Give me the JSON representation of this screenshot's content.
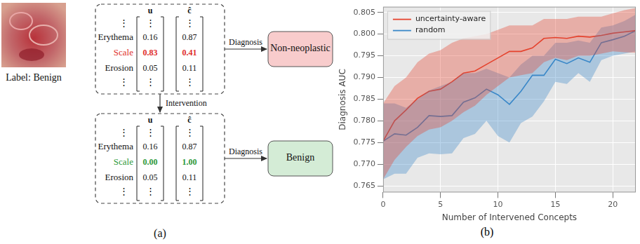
{
  "diagram": {
    "image_caption": "Label: Benign",
    "column_headers": [
      "u",
      "ĉ"
    ],
    "ellipsis": "⋮",
    "before": {
      "rows": [
        {
          "concept": "Erythema",
          "u": "0.16",
          "c": "0.87"
        },
        {
          "concept": "Scale",
          "u": "0.83",
          "c": "0.41",
          "color": "#e0302c"
        },
        {
          "concept": "Erosion",
          "u": "0.05",
          "c": "0.11"
        }
      ],
      "edge_label": "Diagnosis",
      "output": {
        "label": "Non-neoplastic",
        "color": "#f8cccc"
      }
    },
    "intervention_label": "Intervention",
    "after": {
      "rows": [
        {
          "concept": "Erythema",
          "u": "0.16",
          "c": "0.87"
        },
        {
          "concept": "Scale",
          "u": "0.00",
          "c": "1.00",
          "color": "#2e9a3a"
        },
        {
          "concept": "Erosion",
          "u": "0.05",
          "c": "0.11"
        }
      ],
      "edge_label": "Diagnosis",
      "output": {
        "label": "Benign",
        "color": "#d4ecd6"
      }
    },
    "caption": "(a)"
  },
  "chart_data": {
    "type": "line",
    "caption": "(b)",
    "x_label": "Number of Intervened Concepts",
    "y_label": "Diagnosis AUC",
    "x": [
      0,
      1,
      2,
      3,
      4,
      5,
      6,
      7,
      8,
      9,
      10,
      11,
      12,
      13,
      14,
      15,
      16,
      17,
      18,
      19,
      20,
      21,
      22
    ],
    "xlim": [
      0,
      22
    ],
    "xticks": [
      0,
      5,
      10,
      15,
      20
    ],
    "ylim": [
      0.7635,
      0.8063
    ],
    "yticks": [
      0.765,
      {
        "value": 0.77,
        "label": "0.770"
      },
      0.775,
      {
        "value": 0.78,
        "label": "0.780"
      },
      0.785,
      {
        "value": 0.79,
        "label": "0.790"
      },
      0.795,
      {
        "value": 0.8,
        "label": "0.800"
      },
      0.805
    ],
    "grid": true,
    "legend": "upper left",
    "series": [
      {
        "name": "uncertainty-aware",
        "color": "#e5432d",
        "values": [
          0.7753,
          0.78,
          0.7825,
          0.7852,
          0.7868,
          0.7873,
          0.789,
          0.791,
          0.7915,
          0.793,
          0.7945,
          0.796,
          0.796,
          0.7968,
          0.799,
          0.7992,
          0.799,
          0.7995,
          0.7993,
          0.7997,
          0.8002,
          0.8005,
          0.8008
        ],
        "lower": [
          0.7665,
          0.771,
          0.774,
          0.7765,
          0.778,
          0.7785,
          0.78,
          0.782,
          0.7835,
          0.786,
          0.788,
          0.79,
          0.7905,
          0.791,
          0.7935,
          0.7945,
          0.794,
          0.795,
          0.795,
          0.7955,
          0.796,
          0.7958,
          0.7957
        ],
        "upper": [
          0.784,
          0.788,
          0.79,
          0.7935,
          0.7955,
          0.7963,
          0.798,
          0.799,
          0.7995,
          0.8,
          0.801,
          0.802,
          0.802,
          0.802,
          0.8035,
          0.8035,
          0.8035,
          0.804,
          0.804,
          0.804,
          0.8048,
          0.8055,
          0.806
        ]
      },
      {
        "name": "random",
        "color": "#3a88c8",
        "values": [
          0.7753,
          0.777,
          0.7767,
          0.7785,
          0.7812,
          0.781,
          0.7812,
          0.7843,
          0.7853,
          0.7873,
          0.786,
          0.7838,
          0.7868,
          0.7905,
          0.7905,
          0.7942,
          0.7932,
          0.7945,
          0.7935,
          0.798,
          0.7987,
          0.7995,
          0.8008
        ],
        "lower": [
          0.7665,
          0.7678,
          0.7678,
          0.7715,
          0.7725,
          0.7723,
          0.7725,
          0.776,
          0.777,
          0.78,
          0.7765,
          0.775,
          0.7795,
          0.781,
          0.7845,
          0.789,
          0.7885,
          0.791,
          0.789,
          0.794,
          0.795,
          0.7955,
          0.796
        ],
        "upper": [
          0.784,
          0.784,
          0.783,
          0.785,
          0.787,
          0.788,
          0.789,
          0.791,
          0.791,
          0.792,
          0.791,
          0.79,
          0.793,
          0.795,
          0.795,
          0.798,
          0.798,
          0.7985,
          0.798,
          0.8015,
          0.802,
          0.803,
          0.8045
        ]
      }
    ]
  }
}
